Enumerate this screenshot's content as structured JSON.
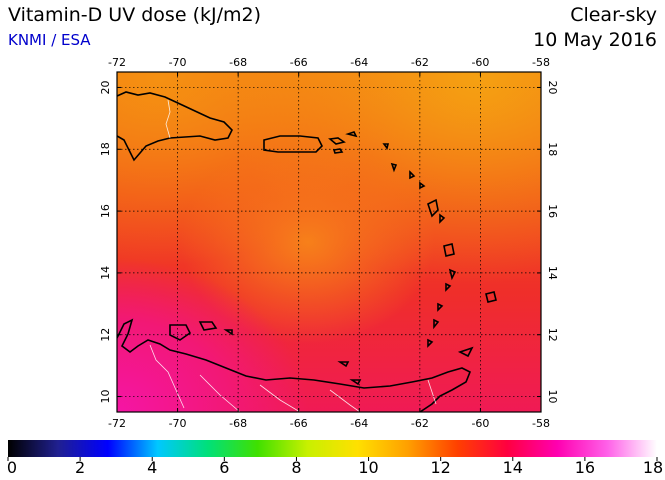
{
  "header": {
    "title": "Vitamin-D UV dose (kJ/m2)",
    "credit": "KNMI / ESA",
    "mode": "Clear-sky",
    "date": "10 May 2016"
  },
  "map": {
    "lon_range": [
      -72,
      -58
    ],
    "lat_range": [
      9.5,
      20.5
    ],
    "lon_ticks": [
      "-72",
      "-70",
      "-68",
      "-66",
      "-64",
      "-62",
      "-60",
      "-58"
    ],
    "lat_ticks": [
      "20",
      "18",
      "16",
      "14",
      "12",
      "10"
    ],
    "grid": true,
    "field_colors": {
      "orange_high": "#f59a10",
      "orange": "#f77515",
      "red_orange": "#f24a1a",
      "red": "#ee2a2f",
      "pink_red": "#f01a5a",
      "magenta": "#f515a0"
    }
  },
  "colorbar": {
    "ticks": [
      "0",
      "2",
      "4",
      "6",
      "8",
      "10",
      "12",
      "14",
      "16",
      "18"
    ],
    "range": [
      0,
      18
    ],
    "stops": [
      "#000000",
      "#202090",
      "#0000ff",
      "#00c8ff",
      "#00e07a",
      "#40e000",
      "#c8f000",
      "#ffe000",
      "#ffa000",
      "#ff4000",
      "#ff0040",
      "#ff00b0",
      "#ff60e8",
      "#ffffff"
    ]
  }
}
